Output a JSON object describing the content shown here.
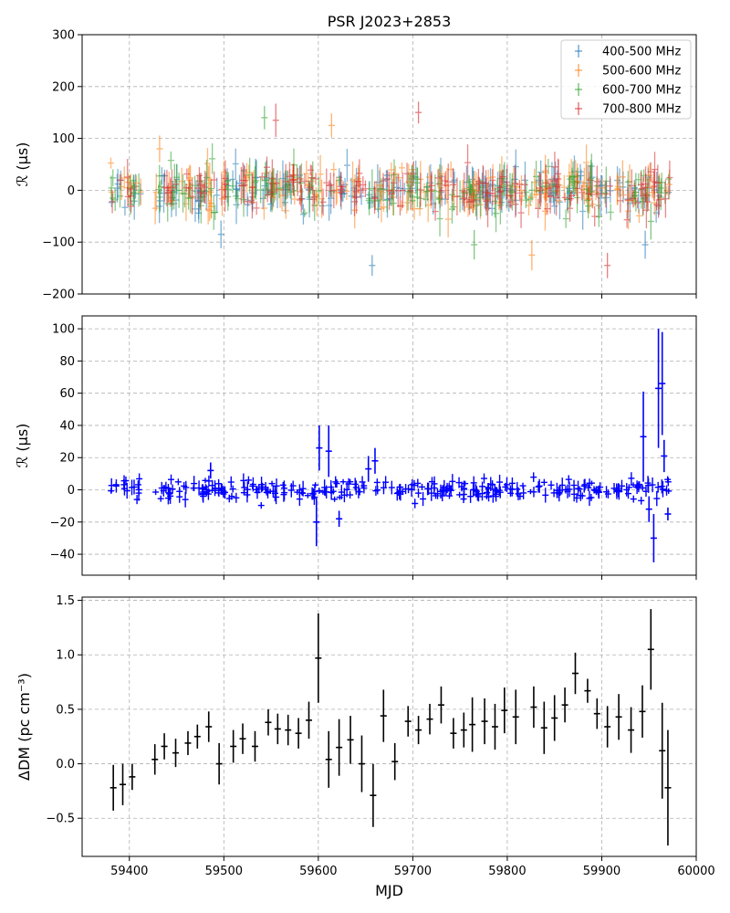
{
  "chart_data": [
    {
      "type": "scatter",
      "title": "PSR J2023+2853",
      "ylabel": "ℛ (μs)",
      "xlim": [
        59350,
        60000
      ],
      "ylim": [
        -200,
        300
      ],
      "yticks": [
        -200,
        -100,
        0,
        100,
        200,
        300
      ],
      "xticks": [
        59400,
        59500,
        59600,
        59700,
        59800,
        59900,
        60000
      ],
      "grid": true,
      "legend_position": "top-right",
      "series": [
        {
          "name": "400-500 MHz",
          "color": "#1f77b4",
          "approx_count": 180,
          "approx_scatter": 35,
          "outliers": [
            {
              "x": 59657,
              "y": -145
            },
            {
              "x": 59497,
              "y": -85
            },
            {
              "x": 59946,
              "y": -105
            }
          ]
        },
        {
          "name": "500-600 MHz",
          "color": "#ff7f0e",
          "approx_count": 180,
          "approx_scatter": 35,
          "outliers": [
            {
              "x": 59826,
              "y": -125
            },
            {
              "x": 59432,
              "y": 80
            },
            {
              "x": 59614,
              "y": 125
            }
          ]
        },
        {
          "name": "600-700 MHz",
          "color": "#2ca02c",
          "approx_count": 180,
          "approx_scatter": 35,
          "outliers": [
            {
              "x": 59543,
              "y": 140
            },
            {
              "x": 59765,
              "y": -105
            },
            {
              "x": 59952,
              "y": -60
            }
          ]
        },
        {
          "name": "700-800 MHz",
          "color": "#d62728",
          "approx_count": 180,
          "approx_scatter": 35,
          "outliers": [
            {
              "x": 59906,
              "y": -145
            },
            {
              "x": 59706,
              "y": 150
            },
            {
              "x": 59555,
              "y": 135
            }
          ]
        }
      ]
    },
    {
      "type": "scatter",
      "ylabel": "ℛ (μs)",
      "xlim": [
        59350,
        60000
      ],
      "ylim": [
        -53,
        108
      ],
      "yticks": [
        -40,
        -20,
        0,
        20,
        40,
        60,
        80,
        100
      ],
      "xticks": [
        59400,
        59500,
        59600,
        59700,
        59800,
        59900,
        60000
      ],
      "grid": true,
      "series": [
        {
          "color": "#0000ff",
          "approx_count": 300,
          "approx_scatter": 3,
          "highlights": [
            {
              "x": 59598,
              "y": -20,
              "err": 15
            },
            {
              "x": 59601,
              "y": 26,
              "err": 14
            },
            {
              "x": 59611,
              "y": 24,
              "err": 16
            },
            {
              "x": 59622,
              "y": -18,
              "err": 5
            },
            {
              "x": 59660,
              "y": 18,
              "err": 8
            },
            {
              "x": 59653,
              "y": 13,
              "err": 8
            },
            {
              "x": 59486,
              "y": 12,
              "err": 5
            },
            {
              "x": 59944,
              "y": 33,
              "err": 28
            },
            {
              "x": 59955,
              "y": -30,
              "err": 15
            },
            {
              "x": 59960,
              "y": 63,
              "err": 37
            },
            {
              "x": 59964,
              "y": 66,
              "err": 32
            },
            {
              "x": 59966,
              "y": 21,
              "err": 10
            },
            {
              "x": 59970,
              "y": -15,
              "err": 4
            },
            {
              "x": 59950,
              "y": -12,
              "err": 8
            }
          ]
        }
      ]
    },
    {
      "type": "scatter",
      "ylabel": "ΔDM (pc cm⁻³)",
      "xlabel": "MJD",
      "xlim": [
        59350,
        60000
      ],
      "ylim": [
        -0.85,
        1.53
      ],
      "yticks": [
        -0.5,
        0.0,
        0.5,
        1.0,
        1.5
      ],
      "ytick_labels": [
        "−0.5",
        "0.0",
        "0.5",
        "1.0",
        "1.5"
      ],
      "xticks": [
        59400,
        59500,
        59600,
        59700,
        59800,
        59900,
        60000
      ],
      "grid": true,
      "series": [
        {
          "color": "#000000",
          "points": [
            {
              "x": 59383,
              "y": -0.22,
              "err": 0.21
            },
            {
              "x": 59393,
              "y": -0.19,
              "err": 0.19
            },
            {
              "x": 59403,
              "y": -0.12,
              "err": 0.12
            },
            {
              "x": 59427,
              "y": 0.04,
              "err": 0.14
            },
            {
              "x": 59437,
              "y": 0.16,
              "err": 0.12
            },
            {
              "x": 59449,
              "y": 0.1,
              "err": 0.13
            },
            {
              "x": 59462,
              "y": 0.19,
              "err": 0.11
            },
            {
              "x": 59472,
              "y": 0.25,
              "err": 0.11
            },
            {
              "x": 59484,
              "y": 0.34,
              "err": 0.14
            },
            {
              "x": 59495,
              "y": 0.0,
              "err": 0.19
            },
            {
              "x": 59510,
              "y": 0.16,
              "err": 0.15
            },
            {
              "x": 59520,
              "y": 0.23,
              "err": 0.14
            },
            {
              "x": 59533,
              "y": 0.16,
              "err": 0.14
            },
            {
              "x": 59547,
              "y": 0.38,
              "err": 0.12
            },
            {
              "x": 59557,
              "y": 0.32,
              "err": 0.14
            },
            {
              "x": 59568,
              "y": 0.31,
              "err": 0.14
            },
            {
              "x": 59579,
              "y": 0.28,
              "err": 0.14
            },
            {
              "x": 59590,
              "y": 0.4,
              "err": 0.17
            },
            {
              "x": 59600,
              "y": 0.97,
              "err": 0.41
            },
            {
              "x": 59611,
              "y": 0.04,
              "err": 0.26
            },
            {
              "x": 59622,
              "y": 0.15,
              "err": 0.26
            },
            {
              "x": 59634,
              "y": 0.22,
              "err": 0.22
            },
            {
              "x": 59646,
              "y": 0.0,
              "err": 0.26
            },
            {
              "x": 59658,
              "y": -0.29,
              "err": 0.29
            },
            {
              "x": 59669,
              "y": 0.44,
              "err": 0.24
            },
            {
              "x": 59681,
              "y": 0.02,
              "err": 0.17
            },
            {
              "x": 59695,
              "y": 0.39,
              "err": 0.14
            },
            {
              "x": 59706,
              "y": 0.31,
              "err": 0.13
            },
            {
              "x": 59718,
              "y": 0.41,
              "err": 0.14
            },
            {
              "x": 59730,
              "y": 0.54,
              "err": 0.17
            },
            {
              "x": 59743,
              "y": 0.28,
              "err": 0.14
            },
            {
              "x": 59754,
              "y": 0.31,
              "err": 0.16
            },
            {
              "x": 59763,
              "y": 0.36,
              "err": 0.25
            },
            {
              "x": 59776,
              "y": 0.39,
              "err": 0.21
            },
            {
              "x": 59787,
              "y": 0.34,
              "err": 0.21
            },
            {
              "x": 59797,
              "y": 0.49,
              "err": 0.21
            },
            {
              "x": 59809,
              "y": 0.43,
              "err": 0.25
            },
            {
              "x": 59828,
              "y": 0.52,
              "err": 0.19
            },
            {
              "x": 59839,
              "y": 0.33,
              "err": 0.24
            },
            {
              "x": 59850,
              "y": 0.42,
              "err": 0.21
            },
            {
              "x": 59861,
              "y": 0.54,
              "err": 0.16
            },
            {
              "x": 59872,
              "y": 0.83,
              "err": 0.19
            },
            {
              "x": 59885,
              "y": 0.67,
              "err": 0.11
            },
            {
              "x": 59895,
              "y": 0.46,
              "err": 0.14
            },
            {
              "x": 59906,
              "y": 0.34,
              "err": 0.19
            },
            {
              "x": 59918,
              "y": 0.43,
              "err": 0.21
            },
            {
              "x": 59931,
              "y": 0.31,
              "err": 0.21
            },
            {
              "x": 59943,
              "y": 0.48,
              "err": 0.24
            },
            {
              "x": 59952,
              "y": 1.05,
              "err": 0.37
            },
            {
              "x": 59964,
              "y": 0.12,
              "err": 0.44
            },
            {
              "x": 59970,
              "y": -0.22,
              "err": 0.53
            }
          ]
        }
      ]
    }
  ]
}
